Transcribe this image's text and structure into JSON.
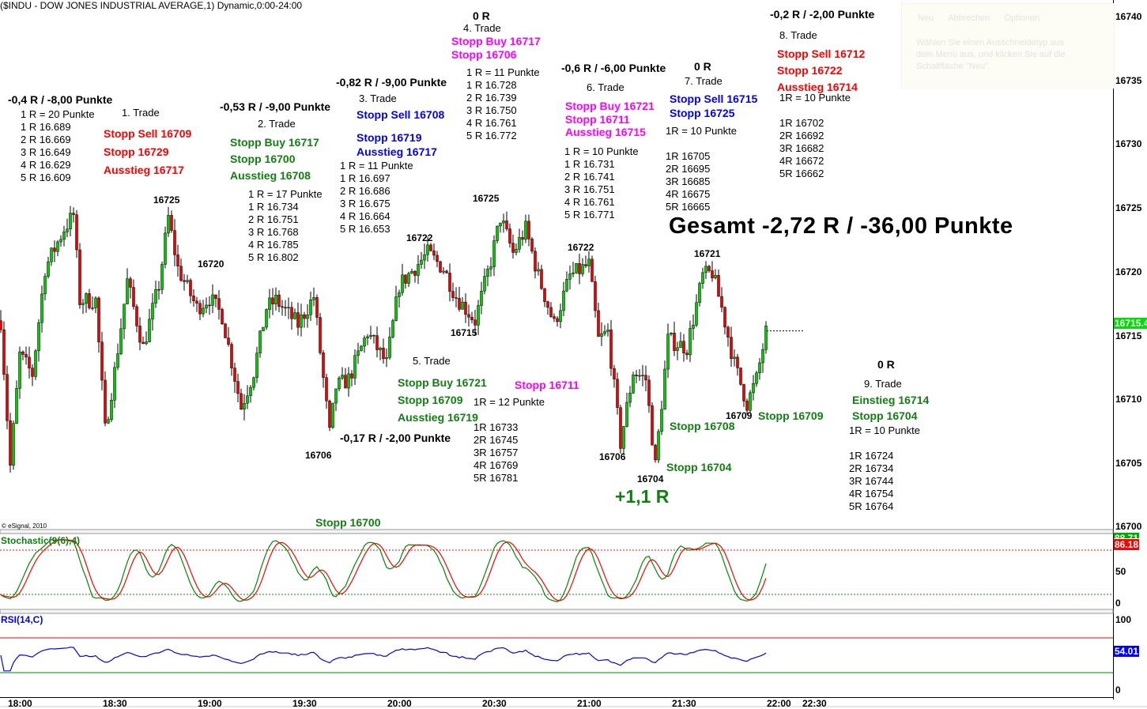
{
  "title": "($INDU - DOW JONES INDUSTRIAL AVERAGE,1) Dynamic,0:00-24:00",
  "copyright": "© eSignal, 2010",
  "ghost_dialog": {
    "buttons": [
      "Neu",
      "Abbrechen",
      "Optionen"
    ],
    "message": "Wählen Sie einen Ausschneidetyp aus dem Menü aus, und klicken Sie auf die Schaltfläche \"Neu\"."
  },
  "colors": {
    "up": "#00cc00",
    "down": "#ee0000",
    "red": "#ff0000",
    "green": "#108010",
    "blue": "#0000ff",
    "magenta": "#ff00ff",
    "last_badge": "#00dd00",
    "stoch_badge": "#ff0000",
    "rsi_badge": "#0000ff"
  },
  "chart_data": {
    "type": "candlestick",
    "symbol": "$INDU",
    "interval_minutes": 1,
    "price_axis": {
      "ylim": [
        16700,
        16740
      ],
      "ticks": [
        "16740",
        "16735",
        "16730",
        "16725",
        "16720",
        "16715",
        "16710",
        "16705",
        "16700"
      ]
    },
    "time_axis": {
      "ticks": [
        "18:00",
        "18:30",
        "19:00",
        "19:30",
        "20:00",
        "20:30",
        "21:00",
        "21:30",
        "22:00",
        "22:30"
      ]
    },
    "price_path_note_minutes_from_1800": "keypoints",
    "price_path": [
      [
        -6,
        16716.2
      ],
      [
        -3,
        16704.8
      ],
      [
        0,
        16713.5
      ],
      [
        4,
        16712
      ],
      [
        8,
        16720.3
      ],
      [
        14,
        16723.4
      ],
      [
        17,
        16724.5
      ],
      [
        19,
        16717.8
      ],
      [
        24,
        16717.8
      ],
      [
        27,
        16707.6
      ],
      [
        30,
        16712.2
      ],
      [
        34,
        16719.3
      ],
      [
        39,
        16714.1
      ],
      [
        44,
        16719
      ],
      [
        47,
        16724.3
      ],
      [
        50,
        16720.3
      ],
      [
        56,
        16717.2
      ],
      [
        60,
        16718
      ],
      [
        64,
        16716.6
      ],
      [
        70,
        16709.4
      ],
      [
        74,
        16712.2
      ],
      [
        78,
        16717.2
      ],
      [
        81,
        16717.8
      ],
      [
        88,
        16715.9
      ],
      [
        93,
        16718.1
      ],
      [
        98,
        16707.3
      ],
      [
        100,
        16711
      ],
      [
        104,
        16711.6
      ],
      [
        110,
        16715.3
      ],
      [
        116,
        16712.8
      ],
      [
        120,
        16719
      ],
      [
        129,
        16721.5
      ],
      [
        134,
        16720.3
      ],
      [
        138,
        16718.1
      ],
      [
        144,
        16716.2
      ],
      [
        149,
        16720.9
      ],
      [
        152,
        16724.3
      ],
      [
        156,
        16721.5
      ],
      [
        160,
        16723.4
      ],
      [
        164,
        16719.7
      ],
      [
        169,
        16715.9
      ],
      [
        174,
        16719.7
      ],
      [
        180,
        16720.6
      ],
      [
        183,
        16714.7
      ],
      [
        186,
        16715.3
      ],
      [
        190,
        16706.6
      ],
      [
        194,
        16712.2
      ],
      [
        198,
        16711.6
      ],
      [
        201,
        16704.8
      ],
      [
        205,
        16714.7
      ],
      [
        211,
        16714.1
      ],
      [
        216,
        16719.7
      ],
      [
        219,
        16720
      ],
      [
        222,
        16717.2
      ],
      [
        226,
        16712.8
      ],
      [
        230,
        16709.7
      ],
      [
        233,
        16711.6
      ],
      [
        236,
        16715.3
      ]
    ],
    "last_price": "16715.4",
    "indicators": [
      {
        "name": "Stochastic(9(6),4)",
        "ylim": [
          0,
          100
        ],
        "ticks": [
          "50",
          "0"
        ],
        "levels": [
          80,
          20
        ],
        "last_value": "86.18",
        "last_value_k": "88.71"
      },
      {
        "name": "RSI(14,C)",
        "ylim": [
          0,
          100
        ],
        "ticks": [
          "100",
          "0"
        ],
        "levels": [
          70,
          30
        ],
        "last_value": "54.01"
      }
    ]
  },
  "annotations": {
    "b1r": [
      {
        "t": "-0,4 R / -8,00 Punkte",
        "s": "h"
      }
    ],
    "b1l": [
      {
        "t": "1 R = 20 Punkte",
        "s": "n"
      },
      {
        "t": "1 R 16.689",
        "s": "n"
      },
      {
        "t": "2 R 16.669",
        "s": "n"
      },
      {
        "t": "3 R 16.649",
        "s": "n"
      },
      {
        "t": "4 R 16.629",
        "s": "n"
      },
      {
        "t": "5 R 16.609",
        "s": "n"
      }
    ],
    "b1t": [
      {
        "t": "1. Trade",
        "s": "n"
      }
    ],
    "b1o": [
      {
        "t": "Stopp Sell 16709",
        "s": "c",
        "c": "#ff0000"
      },
      {
        "t": "Stopp 16729",
        "s": "c",
        "c": "#ff0000"
      },
      {
        "t": " Ausstieg 16717",
        "s": "c",
        "c": "#ff0000"
      }
    ],
    "b2r": [
      {
        "t": "-0,53 R / -9,00 Punkte",
        "s": "h"
      }
    ],
    "b2t": [
      {
        "t": "2. Trade",
        "s": "n"
      }
    ],
    "b2o": [
      {
        "t": "Stopp Buy 16717",
        "s": "c",
        "c": "#108010"
      },
      {
        "t": " Stopp 16700",
        "s": "c",
        "c": "#108010"
      },
      {
        "t": " Ausstieg 16708",
        "s": "c",
        "c": "#108010"
      }
    ],
    "b2l": [
      {
        "t": "1 R = 17 Punkte",
        "s": "n"
      },
      {
        "t": "1 R 16.734",
        "s": "n"
      },
      {
        "t": "2 R 16.751",
        "s": "n"
      },
      {
        "t": "3 R 16.768",
        "s": "n"
      },
      {
        "t": "4 R 16.785",
        "s": "n"
      },
      {
        "t": "5 R 16.802",
        "s": "n"
      }
    ],
    "b3r": [
      {
        "t": "-0,82 R / -9,00 Punkte",
        "s": "h"
      }
    ],
    "b3t": [
      {
        "t": "3. Trade",
        "s": "n"
      }
    ],
    "b3o1": [
      {
        "t": "Stopp Sell 16708",
        "s": "c",
        "c": "#0000ff"
      }
    ],
    "b3o2": [
      {
        "t": "Stopp 16719",
        "s": "c",
        "c": "#0000ff"
      },
      {
        "t": "Ausstieg 16717",
        "s": "c",
        "c": "#0000ff"
      }
    ],
    "b3l": [
      {
        "t": "1 R = 11 Punkte",
        "s": "n"
      },
      {
        "t": "1 R 16.697",
        "s": "n"
      },
      {
        "t": "2 R 16.686",
        "s": "n"
      },
      {
        "t": "3 R 16.675",
        "s": "n"
      },
      {
        "t": "4 R 16.664",
        "s": "n"
      },
      {
        "t": "5 R 16.653",
        "s": "n"
      }
    ],
    "b4r": [
      {
        "t": "0 R",
        "s": "h"
      }
    ],
    "b4t": [
      {
        "t": "4. Trade",
        "s": "n"
      }
    ],
    "b4o": [
      {
        "t": "Stopp Buy 16717",
        "s": "c",
        "c": "#ff00ff"
      },
      {
        "t": "Stopp 16706",
        "s": "c",
        "c": "#ff00ff"
      }
    ],
    "b4l": [
      {
        "t": "1 R = 11 Punkte",
        "s": "n"
      },
      {
        "t": "1 R 16.728",
        "s": "n"
      },
      {
        "t": "2 R 16.739",
        "s": "n"
      },
      {
        "t": "3 R 16.750",
        "s": "n"
      },
      {
        "t": "4 R 16.761",
        "s": "n"
      },
      {
        "t": "5 R 16.772",
        "s": "n"
      }
    ],
    "b5t": [
      {
        "t": "5. Trade",
        "s": "n"
      }
    ],
    "b5o": [
      {
        "t": "Stopp Buy 16721",
        "s": "c",
        "c": "#108010"
      },
      {
        "t": "Stopp 16709",
        "s": "c",
        "c": "#108010"
      },
      {
        "t": " Ausstieg 16719",
        "s": "c",
        "c": "#108010"
      }
    ],
    "b5r": [
      {
        "t": "-0,17 R / -2,00 Punkte",
        "s": "h"
      }
    ],
    "b5a": [
      {
        "t": "1R = 12 Punkte",
        "s": "n"
      }
    ],
    "b5l": [
      {
        "t": "1R 16733",
        "s": "n"
      },
      {
        "t": "2R 16745",
        "s": "n"
      },
      {
        "t": "3R 16757",
        "s": "n"
      },
      {
        "t": "4R 16769",
        "s": "n"
      },
      {
        "t": "5R 16781",
        "s": "n"
      }
    ],
    "b5s": [
      {
        "t": "Stopp 16711",
        "s": "c",
        "c": "#ff00ff"
      }
    ],
    "b6r": [
      {
        "t": "-0,6 R / -6,00 Punkte",
        "s": "h"
      }
    ],
    "b6t": [
      {
        "t": "6. Trade",
        "s": "n"
      }
    ],
    "b6o": [
      {
        "t": "Stopp Buy 16721",
        "s": "c",
        "c": "#ff00ff"
      },
      {
        "t": "Stopp 16711",
        "s": "c",
        "c": "#ff00ff"
      },
      {
        "t": "Ausstieg 16715",
        "s": "c",
        "c": "#ff00ff"
      }
    ],
    "b6l": [
      {
        "t": "1 R = 10 Punkte",
        "s": "n"
      },
      {
        "t": "1 R 16.731",
        "s": "n"
      },
      {
        "t": "2 R 16.741",
        "s": "n"
      },
      {
        "t": "3 R 16.751",
        "s": "n"
      },
      {
        "t": "4 R 16.761",
        "s": "n"
      },
      {
        "t": "5 R 16.771",
        "s": "n"
      }
    ],
    "b7r": [
      {
        "t": "0 R",
        "s": "h"
      }
    ],
    "b7t": [
      {
        "t": "7. Trade",
        "s": "n"
      }
    ],
    "b7o": [
      {
        "t": "Stopp Sell 16715",
        "s": "c",
        "c": "#0000ff"
      },
      {
        "t": "Stopp 16725",
        "s": "c",
        "c": "#0000ff"
      }
    ],
    "b7a": [
      {
        "t": "1R = 10 Punkte",
        "s": "n"
      }
    ],
    "b7l": [
      {
        "t": "1R 16705",
        "s": "n"
      },
      {
        "t": "2R 16695",
        "s": "n"
      },
      {
        "t": "3R 16685",
        "s": "n"
      },
      {
        "t": "4R 16675",
        "s": "n"
      },
      {
        "t": "5R 16665",
        "s": "n"
      }
    ],
    "b8r": [
      {
        "t": "-0,2 R / -2,00 Punkte",
        "s": "h"
      }
    ],
    "b8t": [
      {
        "t": "8. Trade",
        "s": "n"
      }
    ],
    "b8o": [
      {
        "t": "Stopp Sell 16712",
        "s": "c",
        "c": "#ff0000"
      },
      {
        "t": "Stopp 16722",
        "s": "c",
        "c": "#ff0000"
      },
      {
        "t": " Ausstieg 16714",
        "s": "c",
        "c": "#ff0000"
      }
    ],
    "b8a": [
      {
        "t": "1R = 10 Punkte",
        "s": "n"
      }
    ],
    "b8l": [
      {
        "t": "1R 16702",
        "s": "n"
      },
      {
        "t": "2R 16692",
        "s": "n"
      },
      {
        "t": "3R 16682",
        "s": "n"
      },
      {
        "t": "4R 16672",
        "s": "n"
      },
      {
        "t": "5R 16662",
        "s": "n"
      }
    ],
    "total": [
      {
        "t": "Gesamt -2,72 R / -36,00 Punkte",
        "s": "total"
      }
    ],
    "b9r": [
      {
        "t": "0 R",
        "s": "h"
      }
    ],
    "b9t": [
      {
        "t": "9. Trade",
        "s": "n"
      }
    ],
    "b9o": [
      {
        "t": "Einstieg 16714",
        "s": "c",
        "c": "#108010"
      },
      {
        "t": "Stopp 16704",
        "s": "c",
        "c": "#108010"
      }
    ],
    "b9a": [
      {
        "t": "1R = 10 Punkte",
        "s": "n"
      }
    ],
    "b9l": [
      {
        "t": "1R 16724",
        "s": "n"
      },
      {
        "t": "2R 16734",
        "s": "n"
      },
      {
        "t": "3R 16744",
        "s": "n"
      },
      {
        "t": "4R 16754",
        "s": "n"
      },
      {
        "t": "5R 16764",
        "s": "n"
      }
    ],
    "plus": [
      {
        "t": "+1,1 R",
        "s": "big"
      }
    ],
    "s16708": [
      {
        "t": "Stopp 16708",
        "s": "c",
        "c": "#108010"
      }
    ],
    "s16704": [
      {
        "t": "Stopp 16704",
        "s": "c",
        "c": "#108010"
      }
    ],
    "s16709": [
      {
        "t": "Stopp 16709",
        "s": "c",
        "c": "#108010"
      }
    ],
    "s16700": [
      {
        "t": "Stopp 16700",
        "s": "c",
        "c": "#108010"
      }
    ]
  },
  "price_labels": [
    "16725",
    "16720",
    "16706",
    "16722",
    "16725",
    "16715",
    "16722",
    "16706",
    "16704",
    "16721",
    "16709"
  ]
}
